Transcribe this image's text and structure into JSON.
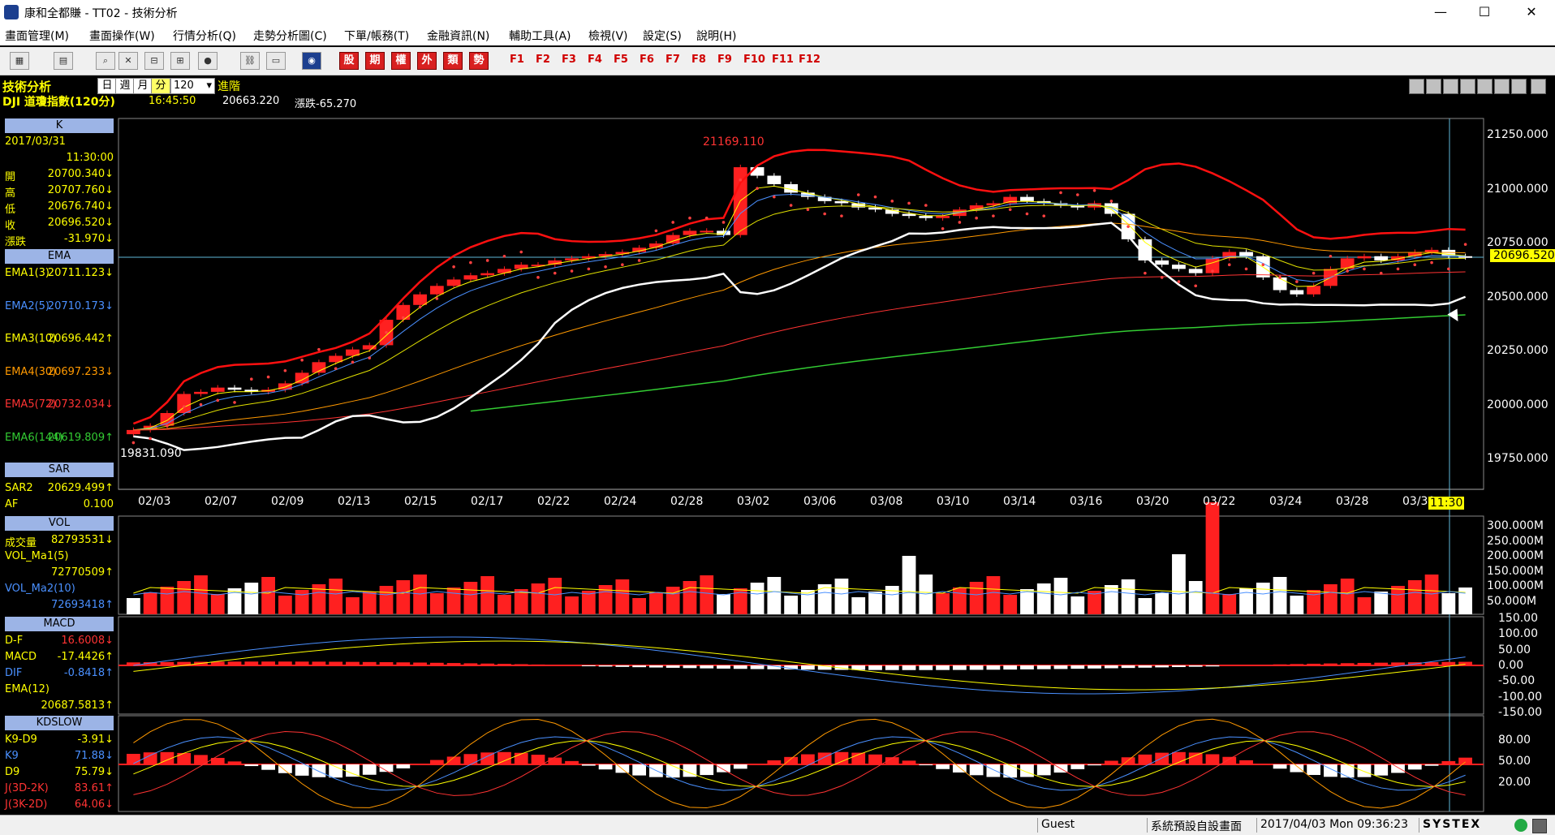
{
  "window": {
    "title": "康和全都賺 - TT02 - 技術分析",
    "minimize": "—",
    "maximize": "☐",
    "close": "✕"
  },
  "menu": [
    "畫面管理(M)",
    "畫面操作(W)",
    "行情分析(Q)",
    "走勢分析圖(C)",
    "下單/帳務(T)",
    "金融資訊(N)",
    "輔助工具(A)",
    "檢視(V)",
    "設定(S)",
    "說明(H)"
  ],
  "toolbar": {
    "red_buttons": [
      "股",
      "期",
      "權",
      "外",
      "類",
      "勢"
    ],
    "fkeys": [
      "F1",
      "F2",
      "F3",
      "F4",
      "F5",
      "F6",
      "F7",
      "F8",
      "F9",
      "F10",
      "F11",
      "F12"
    ]
  },
  "header": {
    "title": "技術分析",
    "periods": [
      "日",
      "週",
      "月",
      "分"
    ],
    "active_period": "分",
    "interval": "120",
    "advanced": "進階",
    "symbol": "DJI 道瓊指數(120分)",
    "time": "16:45:50",
    "price": "20663.220",
    "change": "漲跌-65.270"
  },
  "panel_k": {
    "head": "K",
    "date": "2017/03/31",
    "time": "11:30:00",
    "rows": [
      {
        "label": "開",
        "value": "20700.340↓",
        "color": "#ffff00"
      },
      {
        "label": "高",
        "value": "20707.760↓",
        "color": "#ffff00"
      },
      {
        "label": "低",
        "value": "20676.740↓",
        "color": "#ffff00"
      },
      {
        "label": "收",
        "value": "20696.520↓",
        "color": "#ffff00"
      },
      {
        "label": "漲跌",
        "value": "-31.970↓",
        "color": "#ffff00"
      }
    ]
  },
  "panel_ema": {
    "head": "EMA",
    "rows": [
      {
        "label": "EMA1(3)",
        "value": "20711.123↓",
        "lcolor": "#ffff00",
        "vcolor": "#ffff00"
      },
      {
        "label": "EMA2(5)",
        "value": "20710.173↓",
        "lcolor": "#4a90ff",
        "vcolor": "#4a90ff"
      },
      {
        "label": "EMA3(10)",
        "value": "20696.442↑",
        "lcolor": "#ffff00",
        "vcolor": "#ffff00"
      },
      {
        "label": "EMA4(30)",
        "value": "20697.233↓",
        "lcolor": "#ff9900",
        "vcolor": "#ff9900"
      },
      {
        "label": "EMA5(72)",
        "value": "20732.034↓",
        "lcolor": "#ff3333",
        "vcolor": "#ff3333"
      },
      {
        "label": "EMA6(144)",
        "value": "20619.809↑",
        "lcolor": "#33cc33",
        "vcolor": "#33cc33"
      }
    ]
  },
  "panel_sar": {
    "head": "SAR",
    "rows": [
      {
        "label": "SAR2",
        "value": "20629.499↑",
        "color": "#ffff00"
      },
      {
        "label": "AF",
        "value": "0.100",
        "color": "#ffff00"
      }
    ]
  },
  "panel_vol": {
    "head": "VOL",
    "rows": [
      {
        "label": "成交量",
        "value": "82793531↓",
        "lcolor": "#ffff00",
        "vcolor": "#ffff00"
      },
      {
        "label": "VOL_Ma1(5)",
        "value": "",
        "lcolor": "#ffff00",
        "vcolor": "#ffff00"
      },
      {
        "label": "",
        "value": "72770509↑",
        "lcolor": "#ffff00",
        "vcolor": "#ffff00"
      },
      {
        "label": "VOL_Ma2(10)",
        "value": "",
        "lcolor": "#4a90ff",
        "vcolor": "#4a90ff"
      },
      {
        "label": "",
        "value": "72693418↑",
        "lcolor": "#4a90ff",
        "vcolor": "#4a90ff"
      }
    ]
  },
  "panel_macd": {
    "head": "MACD",
    "rows": [
      {
        "label": "D-F",
        "value": "16.6008↓",
        "lcolor": "#ffff00",
        "vcolor": "#ff3333"
      },
      {
        "label": "MACD",
        "value": "-17.4426↑",
        "lcolor": "#ffff00",
        "vcolor": "#ffff00"
      },
      {
        "label": "DIF",
        "value": "-0.8418↑",
        "lcolor": "#4a90ff",
        "vcolor": "#4a90ff"
      },
      {
        "label": "EMA(12)",
        "value": "",
        "lcolor": "#ffff00",
        "vcolor": "#ffff00"
      },
      {
        "label": "",
        "value": "20687.5813↑",
        "lcolor": "#ffff00",
        "vcolor": "#ffff00"
      }
    ]
  },
  "panel_kd": {
    "head": "KDSLOW",
    "rows": [
      {
        "label": "K9-D9",
        "value": "-3.91↓",
        "lcolor": "#ffff00",
        "vcolor": "#ffff00"
      },
      {
        "label": "K9",
        "value": "71.88↓",
        "lcolor": "#4a90ff",
        "vcolor": "#4a90ff"
      },
      {
        "label": "D9",
        "value": "75.79↓",
        "lcolor": "#ffff00",
        "vcolor": "#ffff00"
      },
      {
        "label": "J(3D-2K)",
        "value": "83.61↑",
        "lcolor": "#ff3333",
        "vcolor": "#ff3333"
      },
      {
        "label": "J(3K-2D)",
        "value": "64.06↓",
        "lcolor": "#ff3333",
        "vcolor": "#ff3333"
      }
    ]
  },
  "price_axis": [
    "21250.000",
    "21000.000",
    "20750.000",
    "20500.000",
    "20250.000",
    "20000.000",
    "19750.000"
  ],
  "price_tag": "20696.520",
  "vol_axis": [
    "300.000M",
    "250.000M",
    "200.000M",
    "150.000M",
    "100.000M",
    "50.000M"
  ],
  "macd_axis": [
    "150.00",
    "100.00",
    "50.00",
    "0.00",
    "-50.00",
    "-100.00",
    "-150.00"
  ],
  "kd_axis": [
    "80.00",
    "50.00",
    "20.00"
  ],
  "x_axis": [
    "02/03",
    "02/07",
    "02/09",
    "02/13",
    "02/15",
    "02/17",
    "02/22",
    "02/24",
    "02/28",
    "03/02",
    "03/06",
    "03/08",
    "03/10",
    "03/14",
    "03/16",
    "03/20",
    "03/22",
    "03/24",
    "03/28",
    "03/30"
  ],
  "cursor_time": "11:30",
  "annotations": {
    "high": "21169.110",
    "low": "19831.090"
  },
  "status": {
    "user": "Guest",
    "layout": "系統預設自設畫面",
    "datetime": "2017/04/03 Mon 09:36:23",
    "brand": "SYSTEX"
  },
  "colors": {
    "bg": "#000000",
    "up": "#ff2020",
    "down": "#ffffff",
    "ema1": "#ffff00",
    "ema2": "#4a90ff",
    "ema3": "#e0e000",
    "ema4": "#ff9900",
    "ema5": "#ff3333",
    "ema6": "#33cc33",
    "boll": "#ff1010",
    "panelhead": "#9cb4e6"
  },
  "chart_data": {
    "type": "candlestick",
    "title": "DJI 道瓊指數(120分)",
    "ylim": [
      19600,
      21350
    ],
    "x_labels": [
      "02/03",
      "02/07",
      "02/09",
      "02/13",
      "02/15",
      "02/17",
      "02/22",
      "02/24",
      "02/28",
      "03/02",
      "03/06",
      "03/08",
      "03/10",
      "03/14",
      "03/16",
      "03/20",
      "03/22",
      "03/24",
      "03/28",
      "03/30"
    ],
    "close": [
      19880,
      19900,
      19960,
      20050,
      20060,
      20080,
      20070,
      20060,
      20070,
      20100,
      20150,
      20200,
      20230,
      20260,
      20280,
      20400,
      20470,
      20520,
      20560,
      20590,
      20610,
      20620,
      20640,
      20660,
      20660,
      20680,
      20690,
      20700,
      20710,
      20720,
      20740,
      20760,
      20800,
      20820,
      20820,
      20800,
      21120,
      21080,
      21040,
      21000,
      20980,
      20960,
      20950,
      20930,
      20920,
      20900,
      20890,
      20880,
      20890,
      20920,
      20940,
      20950,
      20980,
      20960,
      20950,
      20940,
      20930,
      20950,
      20900,
      20780,
      20680,
      20660,
      20640,
      20620,
      20690,
      20720,
      20700,
      20600,
      20540,
      20520,
      20560,
      20640,
      20690,
      20700,
      20680,
      20700,
      20720,
      20730,
      20700,
      20696
    ],
    "ema6": [
      [
        620,
        370
      ],
      [
        700,
        330
      ],
      [
        800,
        300
      ],
      [
        900,
        270
      ],
      [
        1000,
        240
      ],
      [
        1100,
        220
      ],
      [
        1200,
        200
      ],
      [
        1300,
        185
      ],
      [
        1400,
        172
      ],
      [
        1480,
        165
      ],
      [
        1520,
        163
      ]
    ],
    "volume_ma": [
      95,
      95,
      96,
      94,
      95,
      97,
      96,
      95,
      98,
      97
    ],
    "kd_k": [
      60,
      70,
      45,
      30,
      55,
      75,
      50,
      35,
      65,
      80,
      55,
      30,
      45,
      70,
      60,
      40,
      30,
      55,
      75,
      70,
      72
    ]
  }
}
